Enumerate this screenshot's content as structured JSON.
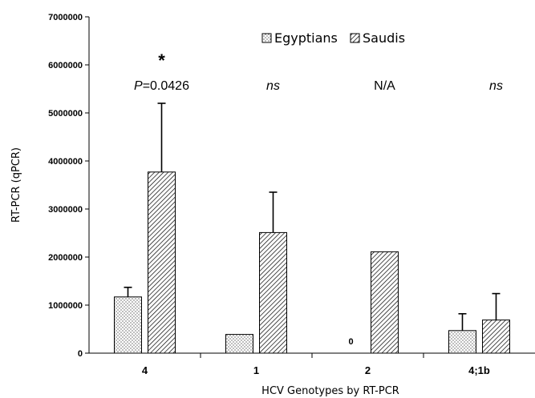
{
  "chart_data": {
    "type": "bar",
    "xlabel": "HCV Genotypes by RT-PCR",
    "ylabel": "RT-PCR (qPCR)",
    "ylim": [
      0,
      7000000
    ],
    "yticks": [
      0,
      1000000,
      2000000,
      3000000,
      4000000,
      5000000,
      6000000,
      7000000
    ],
    "ytick_labels": [
      "0",
      "1000000",
      "2000000",
      "3000000",
      "4000000",
      "5000000",
      "6000000",
      "7000000"
    ],
    "categories": [
      "4",
      "1",
      "2",
      "4;1b"
    ],
    "series": [
      {
        "name": "Egyptians",
        "pattern": "dots",
        "values": [
          1170000,
          390000,
          0,
          470000
        ],
        "error_upper": [
          200000,
          null,
          null,
          350000
        ]
      },
      {
        "name": "Saudis",
        "pattern": "diagonal-hatch",
        "values": [
          3770000,
          2510000,
          2110000,
          690000
        ],
        "error_upper": [
          1430000,
          840000,
          null,
          550000
        ]
      }
    ],
    "legend_position": "top-center",
    "grid": false,
    "annotations": {
      "significance": [
        "P=0.0426",
        "ns",
        "N/A",
        "ns"
      ],
      "significance_star": "*",
      "zero_value_label": "0"
    }
  }
}
